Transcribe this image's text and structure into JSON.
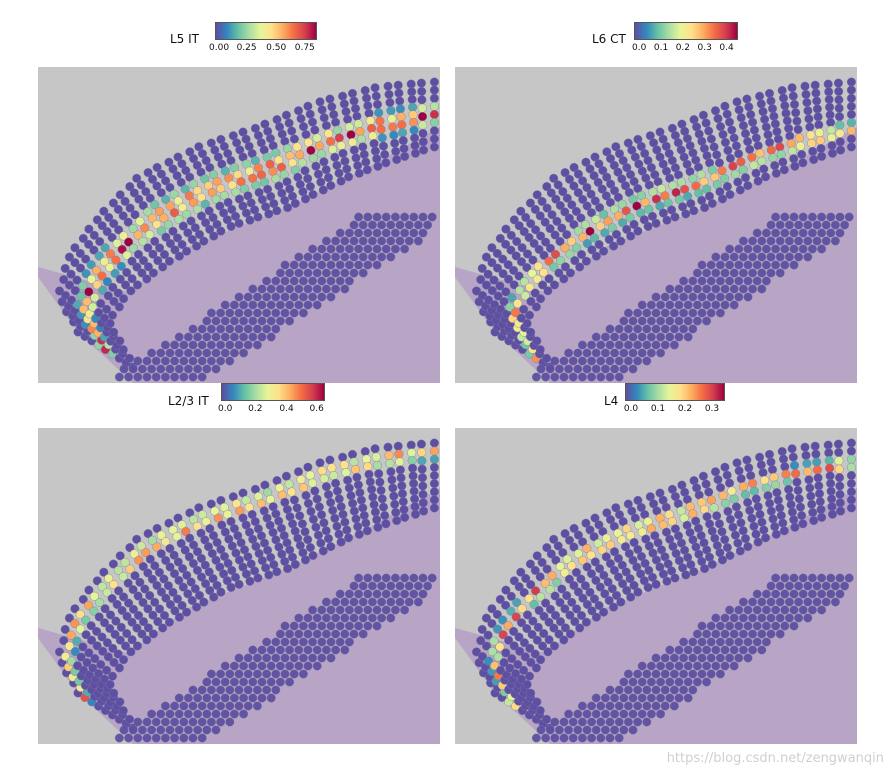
{
  "panels": [
    {
      "id": "l5it",
      "title": "L5 IT",
      "ticks": [
        "0.00",
        "0.25",
        "0.50",
        "0.75"
      ],
      "band": "mid"
    },
    {
      "id": "l6ct",
      "title": "L6 CT",
      "ticks": [
        "0.0",
        "0.1",
        "0.2",
        "0.3",
        "0.4"
      ],
      "band": "inner"
    },
    {
      "id": "l23it",
      "title": "L2/3 IT",
      "ticks": [
        "0.0",
        "0.2",
        "0.4",
        "0.6"
      ],
      "band": "outer"
    },
    {
      "id": "l4",
      "title": "L4",
      "ticks": [
        "0.0",
        "0.1",
        "0.2",
        "0.3"
      ],
      "band": "outermid"
    }
  ],
  "watermark": "https://blog.csdn.net/zengwanqin",
  "colors": {
    "tissue_bg": "#c6c6c6",
    "tissue_stain": "#b39ac6",
    "low_spot": "#5e4fa2",
    "colormap": [
      "#5e4fa2",
      "#3288bd",
      "#66c2a5",
      "#abdda4",
      "#e6f598",
      "#fee08b",
      "#fdae61",
      "#f46d43",
      "#d53e4f",
      "#9e0142"
    ]
  }
}
